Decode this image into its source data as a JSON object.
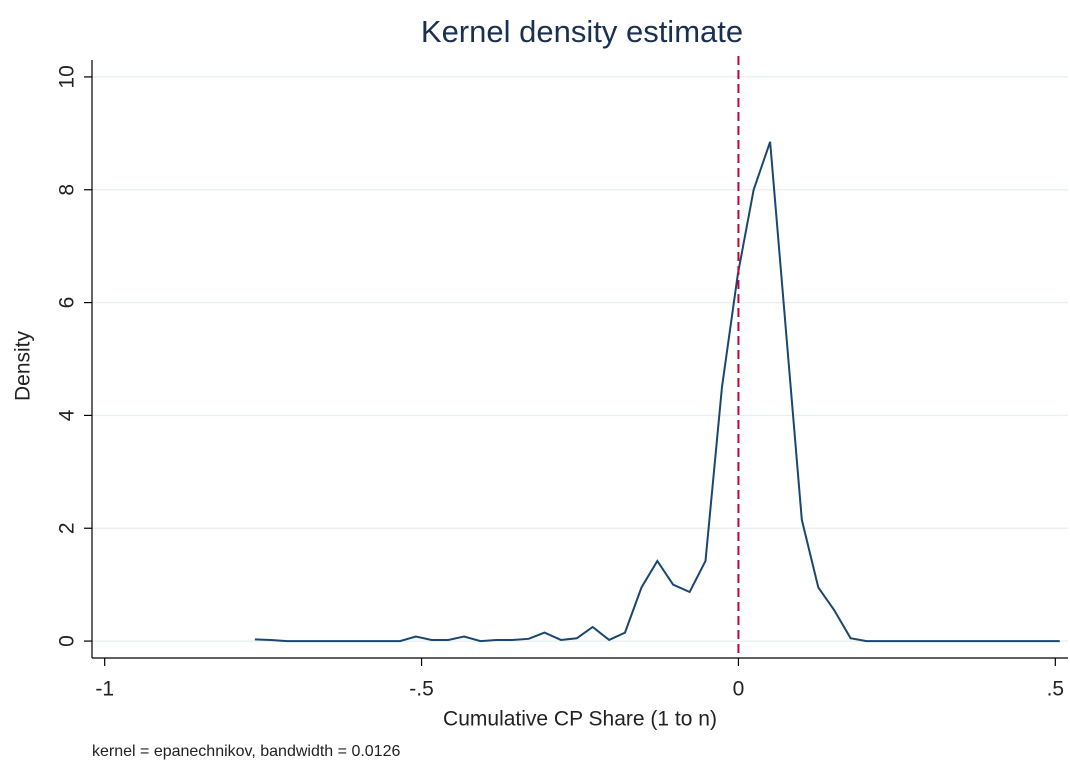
{
  "chart_data": {
    "type": "line",
    "title": "Kernel density estimate",
    "xlabel": "Cumulative CP Share (1 to n)",
    "ylabel": "Density",
    "note": "kernel = epanechnikov, bandwidth = 0.0126",
    "x": [
      -0.763,
      -0.738,
      -0.712,
      -0.687,
      -0.661,
      -0.636,
      -0.611,
      -0.585,
      -0.56,
      -0.534,
      -0.509,
      -0.484,
      -0.458,
      -0.433,
      -0.407,
      -0.382,
      -0.357,
      -0.331,
      -0.306,
      -0.28,
      -0.255,
      -0.23,
      -0.204,
      -0.179,
      -0.153,
      -0.128,
      -0.103,
      -0.077,
      -0.052,
      -0.026,
      -0.001,
      0.024,
      0.05,
      0.075,
      0.1,
      0.126,
      0.151,
      0.177,
      0.202,
      0.228,
      0.253,
      0.278,
      0.304,
      0.329,
      0.355,
      0.38,
      0.405,
      0.431,
      0.456,
      0.482,
      0.507
    ],
    "series": [
      {
        "color": "#1a476f",
        "values": [
          0.03,
          0.02,
          0,
          0,
          0,
          0,
          0,
          0,
          0,
          0,
          0.08,
          0.02,
          0.02,
          0.08,
          0,
          0.02,
          0.02,
          0.04,
          0.15,
          0.02,
          0.05,
          0.25,
          0.02,
          0.15,
          0.95,
          1.42,
          1.0,
          0.87,
          1.42,
          4.5,
          6.5,
          8.0,
          8.85,
          5.5,
          2.15,
          0.95,
          0.55,
          0.05,
          0,
          0,
          0,
          0,
          0,
          0,
          0,
          0,
          0,
          0,
          0,
          0,
          0
        ]
      }
    ],
    "xlim": [
      -1.02,
      0.52
    ],
    "ylim": [
      -0.3,
      10.3
    ],
    "xticks": [
      -1,
      {
        "value": -0.5,
        "label": "-.5"
      },
      0,
      {
        "value": 0.5,
        "label": ".5"
      }
    ],
    "yticks": [
      0,
      2,
      4,
      6,
      8,
      10
    ],
    "xline": {
      "value": 0,
      "color": "#c10534"
    },
    "grid": true
  }
}
